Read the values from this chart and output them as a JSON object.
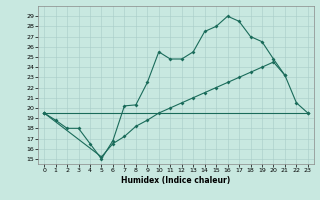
{
  "xlabel": "Humidex (Indice chaleur)",
  "xlim": [
    -0.5,
    23.5
  ],
  "ylim": [
    14.5,
    30.0
  ],
  "xticks": [
    0,
    1,
    2,
    3,
    4,
    5,
    6,
    7,
    8,
    9,
    10,
    11,
    12,
    13,
    14,
    15,
    16,
    17,
    18,
    19,
    20,
    21,
    22,
    23
  ],
  "yticks": [
    15,
    16,
    17,
    18,
    19,
    20,
    21,
    22,
    23,
    24,
    25,
    26,
    27,
    28,
    29
  ],
  "bg_color": "#c8e8e0",
  "grid_color": "#a8ccc8",
  "line_color": "#1a6b5a",
  "line1_x": [
    0,
    1,
    2,
    3,
    4,
    5,
    6,
    7,
    8,
    9,
    10,
    11,
    12,
    13,
    14,
    15,
    16,
    17,
    18,
    19,
    20,
    21
  ],
  "line1_y": [
    19.5,
    18.8,
    18.0,
    18.0,
    16.5,
    15.0,
    16.8,
    20.2,
    20.3,
    22.5,
    25.5,
    24.8,
    24.8,
    25.5,
    27.5,
    28.0,
    29.0,
    28.5,
    27.0,
    26.5,
    24.8,
    23.2
  ],
  "line2_x": [
    0,
    23
  ],
  "line2_y": [
    19.5,
    19.5
  ],
  "line3_x": [
    0,
    5,
    6,
    7,
    8,
    9,
    10,
    11,
    12,
    13,
    14,
    15,
    16,
    17,
    18,
    19,
    20,
    21,
    22,
    23
  ],
  "line3_y": [
    19.5,
    15.2,
    16.5,
    17.2,
    18.2,
    18.8,
    19.5,
    20.0,
    20.5,
    21.0,
    21.5,
    22.0,
    22.5,
    23.0,
    23.5,
    24.0,
    24.5,
    23.2,
    20.5,
    19.5
  ]
}
